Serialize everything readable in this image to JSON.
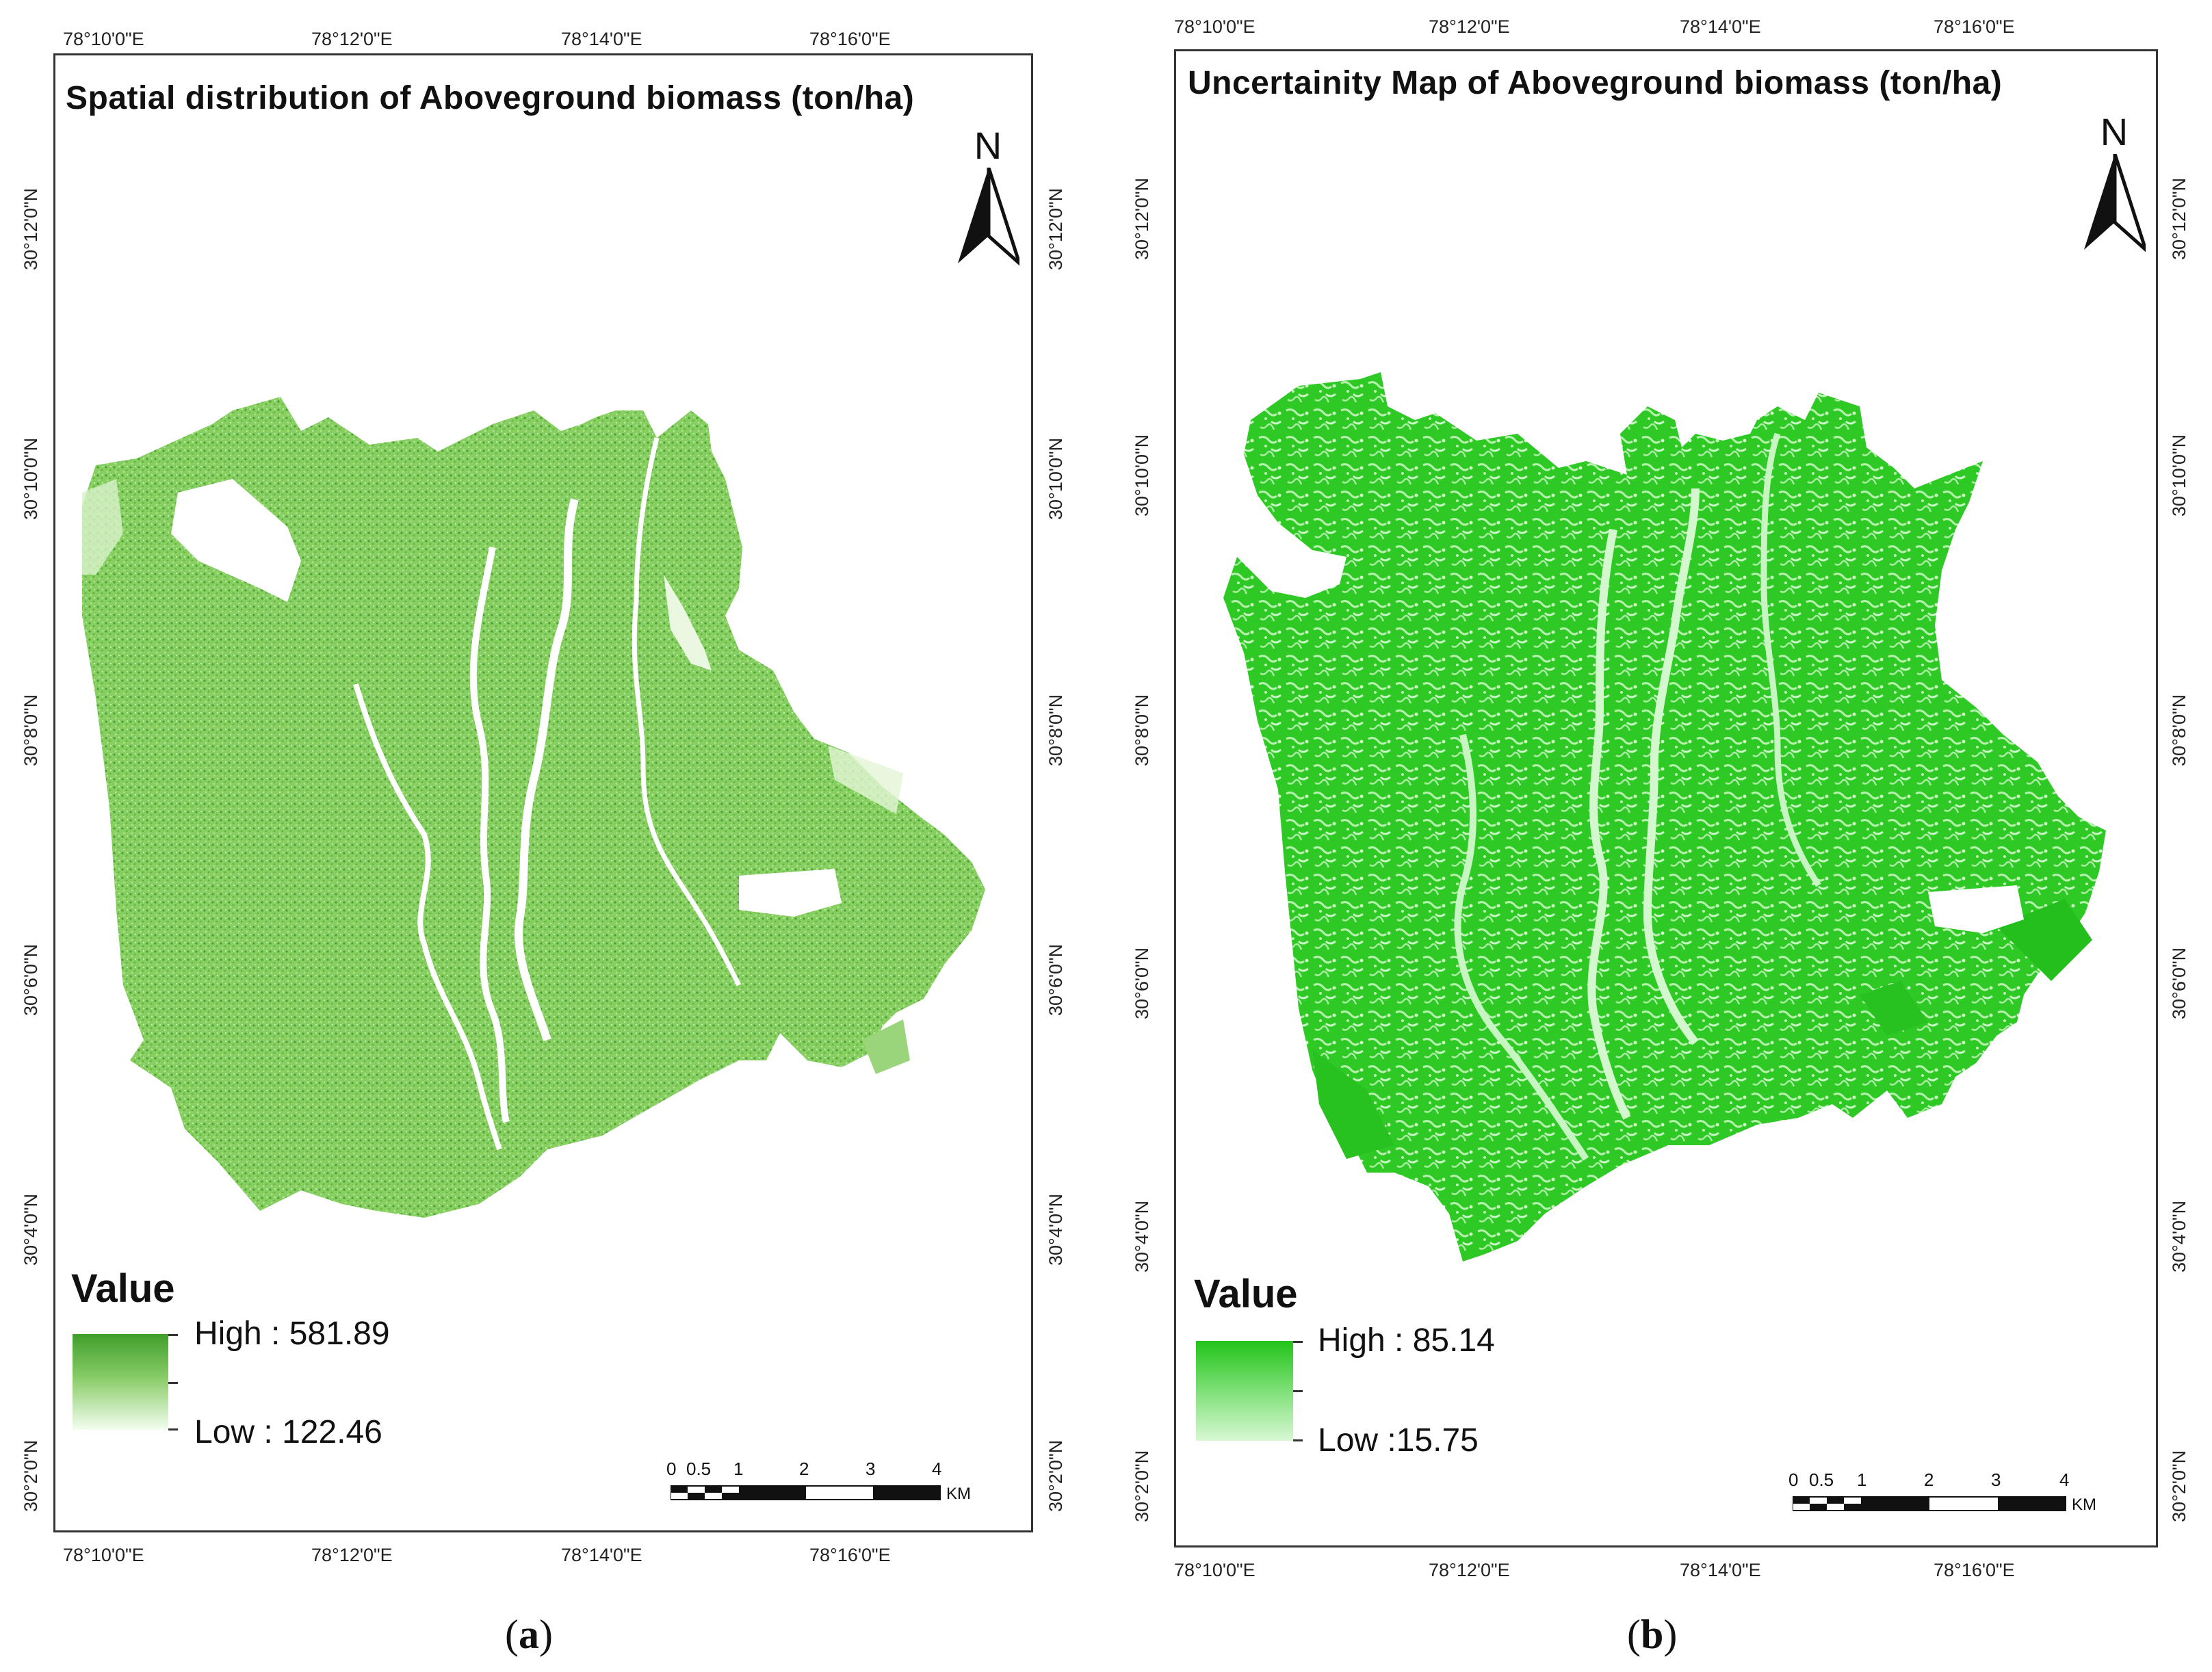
{
  "panels": [
    {
      "id": "a",
      "title": "Spatial distribution of Aboveground biomass (ton/ha)",
      "lon_ticks": [
        "78°10'0\"E",
        "78°12'0\"E",
        "78°14'0\"E",
        "78°16'0\"E"
      ],
      "lat_ticks": [
        "30°12'0\"N",
        "30°10'0\"N",
        "30°8'0\"N",
        "30°6'0\"N",
        "30°4'0\"N",
        "30°2'0\"N"
      ],
      "north_label": "N",
      "legend": {
        "heading": "Value",
        "high_label": "High : 581.89",
        "low_label": "Low : 122.46",
        "high_color": "#3f9e2a",
        "low_color": "#f3fdf0"
      },
      "scalebar": {
        "labels": [
          "0",
          "0.5",
          "1",
          "2",
          "3",
          "4"
        ],
        "unit": "KM"
      },
      "caption_letter": "a",
      "fill_color": "#78c852"
    },
    {
      "id": "b",
      "title": "Uncertainity Map of Aboveground biomass (ton/ha)",
      "lon_ticks": [
        "78°10'0\"E",
        "78°12'0\"E",
        "78°14'0\"E",
        "78°16'0\"E"
      ],
      "lat_ticks": [
        "30°12'0\"N",
        "30°10'0\"N",
        "30°8'0\"N",
        "30°6'0\"N",
        "30°4'0\"N",
        "30°2'0\"N"
      ],
      "north_label": "N",
      "legend": {
        "heading": "Value",
        "high_label": "High : 85.14",
        "low_label": "Low :15.75",
        "high_color": "#22c41a",
        "low_color": "#d8f8d4"
      },
      "scalebar": {
        "labels": [
          "0",
          "0.5",
          "1",
          "2",
          "3",
          "4"
        ],
        "unit": "KM"
      },
      "caption_letter": "b",
      "fill_color": "#2bcb22"
    }
  ]
}
